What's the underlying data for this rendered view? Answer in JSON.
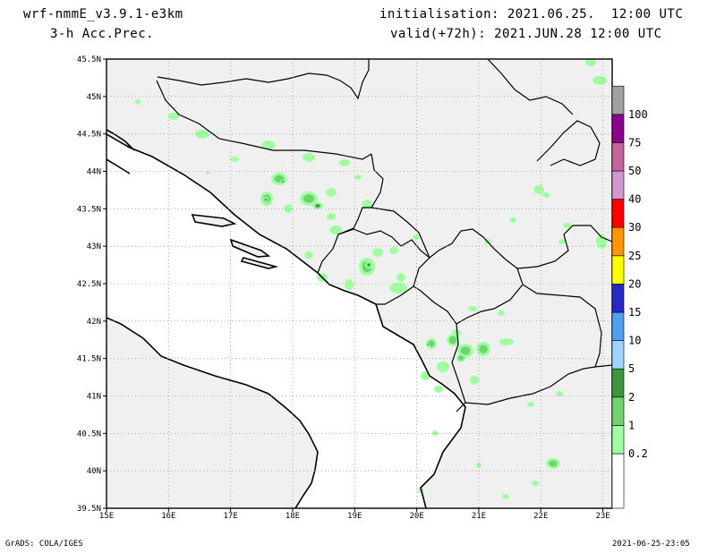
{
  "header": {
    "model": "wrf-nmmE_v3.9.1-e3km",
    "field": "3-h Acc.Prec.",
    "init": "initialisation: 2021.06.25.  12:00 UTC",
    "valid": "valid(+72h): 2021.JUN.28 12:00 UTC"
  },
  "footer": {
    "credit": "GrADS: COLA/IGES",
    "timestamp": "2021-06-25-23:05"
  },
  "axes": {
    "lat_labels": [
      "45.5N",
      "45N",
      "44.5N",
      "44N",
      "43.5N",
      "43N",
      "42.5N",
      "42N",
      "41.5N",
      "41N",
      "40.5N",
      "40N",
      "39.5N"
    ],
    "lon_labels": [
      "15E",
      "16E",
      "17E",
      "18E",
      "19E",
      "20E",
      "21E",
      "22E",
      "23E"
    ]
  },
  "colorbar": {
    "levels": [
      "0.2",
      "1",
      "2",
      "5",
      "10",
      "15",
      "20",
      "25",
      "30",
      "40",
      "50",
      "75",
      "100"
    ],
    "colors": [
      "#ffffff",
      "#a0ffa0",
      "#6ed26e",
      "#3c963c",
      "#a0d2ff",
      "#50a0f0",
      "#2828c8",
      "#ffff00",
      "#ff9600",
      "#ff0000",
      "#d296d2",
      "#c8649c",
      "#8c008c",
      "#a0a0a0"
    ]
  },
  "map": {
    "land_color": "#f0f0f0",
    "sea_color": "#ffffff",
    "grid": "dotted"
  }
}
